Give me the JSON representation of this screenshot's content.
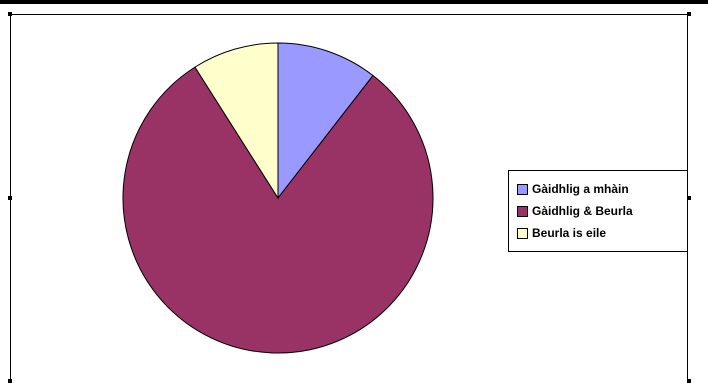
{
  "chart_data": {
    "type": "pie",
    "title": "",
    "categories": [
      "Gàidhlig a mhàin",
      "Gàidhlig & Beurla",
      "Beurla is eile"
    ],
    "values": [
      10.5,
      80.5,
      9
    ],
    "colors": [
      "#9999ff",
      "#993366",
      "#ffffcc"
    ],
    "legend_position": "right"
  }
}
